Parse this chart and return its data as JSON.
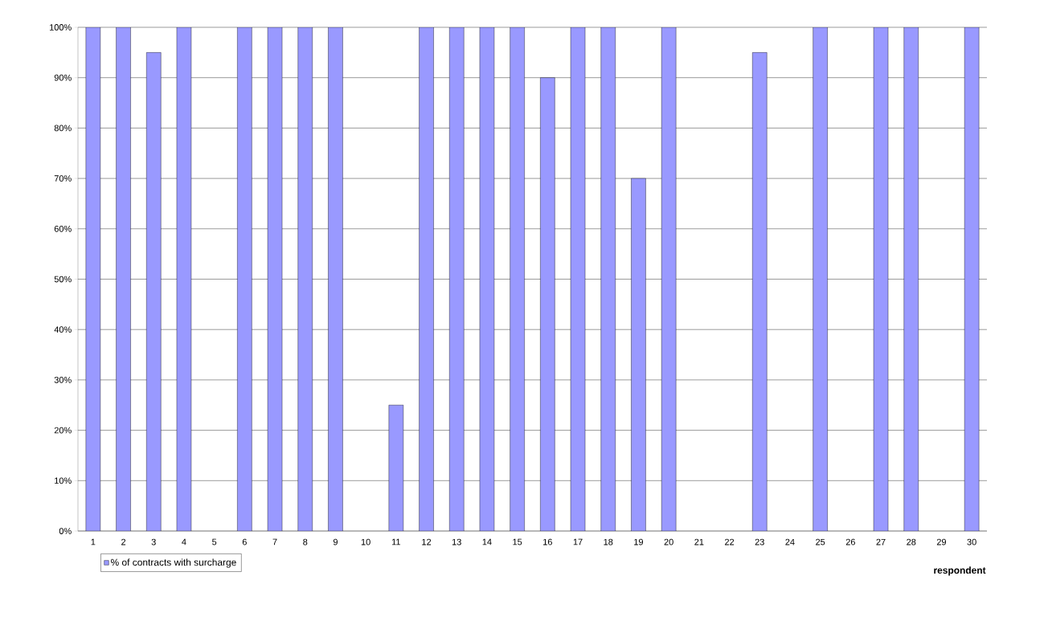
{
  "chart_data": {
    "type": "bar",
    "xlabel": "respondent",
    "categories": [
      "1",
      "2",
      "3",
      "4",
      "5",
      "6",
      "7",
      "8",
      "9",
      "10",
      "11",
      "12",
      "13",
      "14",
      "15",
      "16",
      "17",
      "18",
      "19",
      "20",
      "21",
      "22",
      "23",
      "24",
      "25",
      "26",
      "27",
      "28",
      "29",
      "30"
    ],
    "series": [
      {
        "name": "% of contracts with surcharge",
        "color": "#9999ff",
        "values": [
          100,
          100,
          95,
          100,
          0,
          100,
          100,
          100,
          100,
          0,
          25,
          100,
          100,
          100,
          100,
          90,
          100,
          100,
          70,
          100,
          0,
          0,
          95,
          0,
          100,
          0,
          100,
          100,
          0,
          100
        ]
      }
    ],
    "ylim": [
      0,
      100
    ],
    "yticks": [
      {
        "value": 0,
        "label": "0%"
      },
      {
        "value": 10,
        "label": "10%"
      },
      {
        "value": 20,
        "label": "20%"
      },
      {
        "value": 30,
        "label": "30%"
      },
      {
        "value": 40,
        "label": "40%"
      },
      {
        "value": 50,
        "label": "50%"
      },
      {
        "value": 60,
        "label": "60%"
      },
      {
        "value": 70,
        "label": "70%"
      },
      {
        "value": 80,
        "label": "80%"
      },
      {
        "value": 90,
        "label": "90%"
      },
      {
        "value": 100,
        "label": "100%"
      }
    ],
    "grid": "y",
    "legend": "bottom left"
  }
}
